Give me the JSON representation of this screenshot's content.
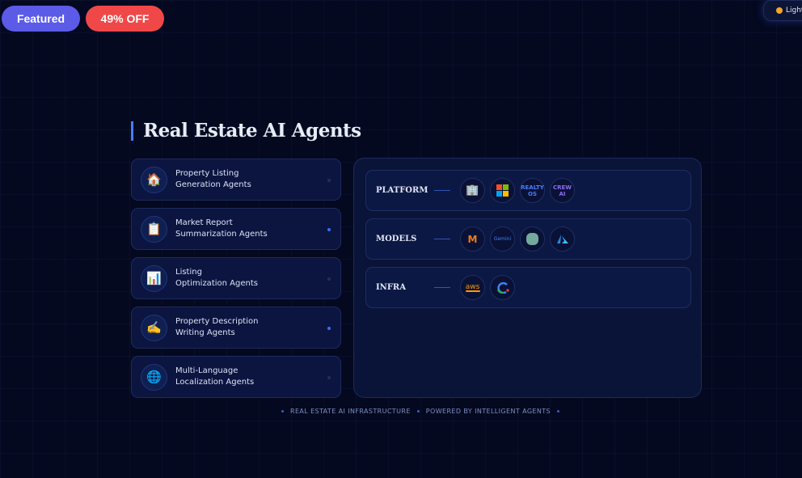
{
  "badges": {
    "featured": "Featured",
    "discount": "49% OFF"
  },
  "theme_toggle": {
    "label": "Light"
  },
  "title": "Real Estate AI Agents",
  "agents": [
    {
      "icon": "house-icon",
      "glyph": "🏠",
      "line1": "Property Listing",
      "line2": "Generation Agents",
      "active": false
    },
    {
      "icon": "clipboard-icon",
      "glyph": "📋",
      "line1": "Market Report",
      "line2": "Summarization Agents",
      "active": true
    },
    {
      "icon": "bar-chart-icon",
      "glyph": "📊",
      "line1": "Listing",
      "line2": "Optimization Agents",
      "active": false
    },
    {
      "icon": "writing-hand-icon",
      "glyph": "✍️",
      "line1": "Property Description",
      "line2": "Writing Agents",
      "active": true
    },
    {
      "icon": "globe-icon",
      "glyph": "🌐",
      "line1": "Multi-Language",
      "line2": "Localization Agents",
      "active": false
    }
  ],
  "stack": {
    "platform": {
      "label": "PLATFORM",
      "logos": {
        "realty": "REALTY OS",
        "crew": "CREW AI"
      }
    },
    "models": {
      "label": "MODELS",
      "logos": {
        "m": "M",
        "gemini": "Gemini"
      }
    },
    "infra": {
      "label": "INFRA",
      "logos": {
        "aws": "aws"
      }
    }
  },
  "footer": {
    "left": "REAL ESTATE AI INFRASTRUCTURE",
    "right": "POWERED BY INTELLIGENT AGENTS"
  },
  "colors": {
    "featured": "#5b5be8",
    "discount": "#f04848",
    "accent": "#4a7cff",
    "background": "#040920"
  }
}
